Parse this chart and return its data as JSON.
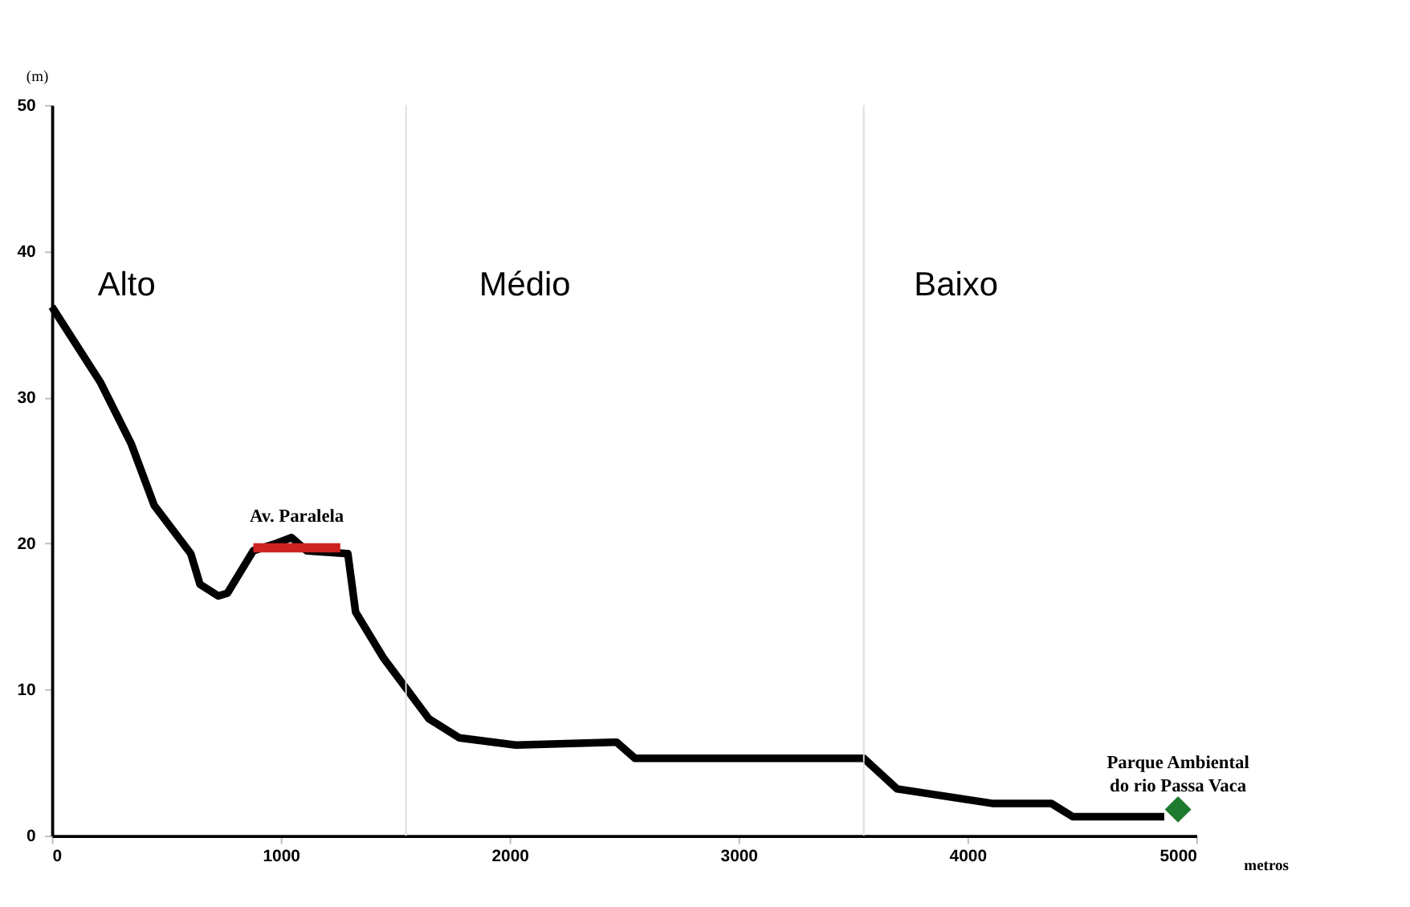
{
  "chart_data": {
    "type": "line",
    "xlabel": "metros",
    "ylabel": "(m)",
    "xlim": [
      0,
      5000
    ],
    "xticks": [
      0,
      1000,
      2000,
      3000,
      4000,
      5000
    ],
    "ylim": [
      0,
      50
    ],
    "yticks": [
      0,
      10,
      20,
      30,
      40,
      50
    ],
    "grid": false,
    "series": [
      {
        "color": "#000000",
        "x": [
          0,
          213,
          347,
          447,
          607,
          647,
          727,
          767,
          880,
          980,
          1047,
          1113,
          1293,
          1327,
          1447,
          1647,
          1780,
          2027,
          2467,
          2547,
          3547,
          3693,
          4113,
          4367,
          4460,
          4860
        ],
        "values": [
          36.2,
          31,
          26.8,
          22.6,
          19.3,
          17.2,
          16.4,
          16.6,
          19.5,
          20,
          20.4,
          19.5,
          19.3,
          15.3,
          12.2,
          8,
          6.7,
          6.2,
          6.4,
          5.3,
          5.3,
          3.2,
          2.2,
          2.2,
          1.3,
          1.3
        ]
      },
      {
        "type": "line",
        "name": "Av. Paralela",
        "color": "#cc2222",
        "x": [
          880,
          1260
        ],
        "values": [
          19.7,
          19.7
        ]
      },
      {
        "type": "scatter",
        "name": "Parque Ambiental\ndo rio Passa Vaca",
        "color": "#1e7a2e",
        "marker": "diamond",
        "x": [
          4920
        ],
        "values": [
          1.8
        ]
      }
    ],
    "ref_lines": [
      {
        "axis": "x",
        "value": 1547,
        "color": "#dddddd"
      },
      {
        "axis": "x",
        "value": 3547,
        "color": "#dddddd"
      }
    ],
    "annotations": [
      "Alto",
      "Médio",
      "Baixo"
    ]
  }
}
